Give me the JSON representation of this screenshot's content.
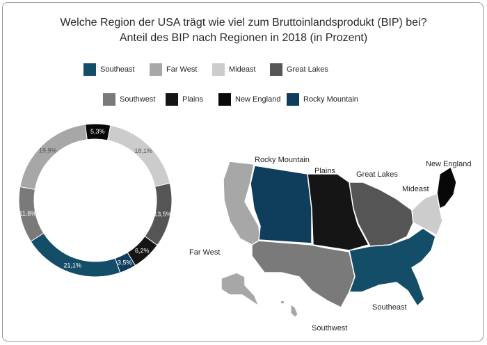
{
  "title": "Welche Region der USA trägt wie viel zum Bruttoinlandsprodukt (BIP) bei?",
  "subtitle": "Anteil des BIP nach Regionen in 2018 (in Prozent)",
  "colors": {
    "Southeast": "#134d67",
    "Far West": "#a7a7a7",
    "Mideast": "#cccccc",
    "Great Lakes": "#555555",
    "Southwest": "#7a7a7a",
    "Plains": "#151515",
    "New England": "#080808",
    "Rocky Mountain": "#0f3d5c"
  },
  "legend": [
    "Southeast",
    "Far West",
    "Mideast",
    "Great Lakes",
    "Southwest",
    "Plains",
    "New England",
    "Rocky Mountain"
  ],
  "chart_data": {
    "type": "pie",
    "variant": "donut",
    "title": "Welche Region der USA trägt wie viel zum Bruttoinlandsprodukt (BIP) bei?",
    "subtitle": "Anteil des BIP nach Regionen in 2018 (in Prozent)",
    "slices": [
      {
        "name": "New England",
        "value": 5.3,
        "label": "5,3%"
      },
      {
        "name": "Mideast",
        "value": 18.1,
        "label": "18,1%"
      },
      {
        "name": "Great Lakes",
        "value": 13.5,
        "label": "13,5%"
      },
      {
        "name": "Plains",
        "value": 6.2,
        "label": "6,2%"
      },
      {
        "name": "Rocky Mountain",
        "value": 3.5,
        "label": "3,5%"
      },
      {
        "name": "Southeast",
        "value": 21.1,
        "label": "21,1%"
      },
      {
        "name": "Southwest",
        "value": 11.8,
        "label": "11,8%"
      },
      {
        "name": "Far West",
        "value": 19.9,
        "label": "19,9%"
      }
    ]
  },
  "map": {
    "labels": [
      "Rocky Mountain",
      "Plains",
      "Great Lakes",
      "New England",
      "Mideast",
      "Far West",
      "Southeast",
      "Southwest"
    ]
  }
}
